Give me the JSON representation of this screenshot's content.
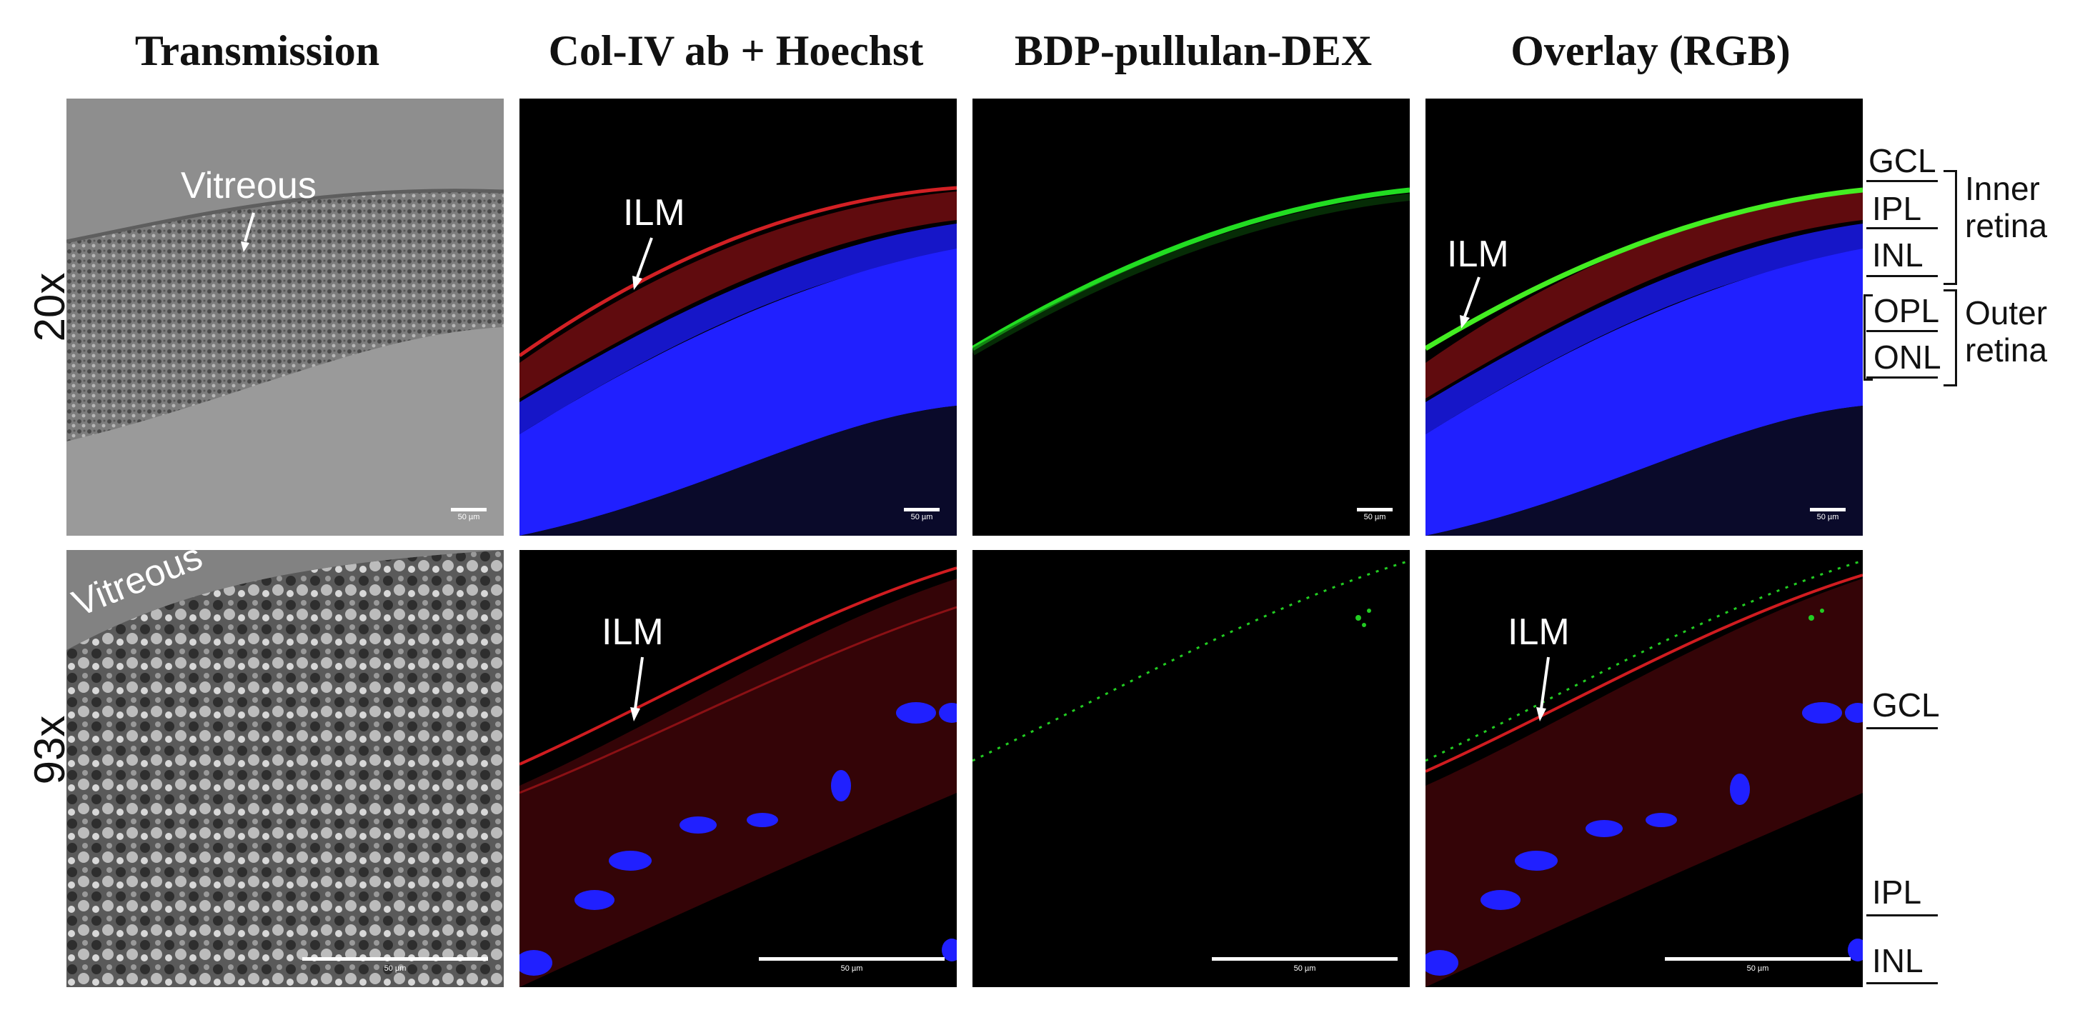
{
  "columns": {
    "transmission": "Transmission",
    "colIV": "Col-IV ab + Hoechst",
    "bdp": "BDP-pullulan-DEX",
    "overlay": "Overlay (RGB)"
  },
  "rows": {
    "row1": "20x",
    "row2": "93x"
  },
  "annotations": {
    "vitreous": "Vitreous",
    "ilm": "ILM"
  },
  "scalebars": {
    "r1": "50 µm",
    "r2": "50 µm"
  },
  "layers": {
    "gcl": "GCL",
    "ipl": "IPL",
    "inl": "INL",
    "opl": "OPL",
    "onl": "ONL",
    "inner_line1": "Inner",
    "inner_line2": "retina",
    "outer_line1": "Outer",
    "outer_line2": "retina"
  },
  "colors": {
    "background": "#ffffff",
    "panel_dark": "#000000",
    "transmission_gray": "#8a8a8a",
    "nuclei_blue": "#1a1aff",
    "collagen_red": "#c0181a",
    "probe_green": "#22dd22"
  }
}
